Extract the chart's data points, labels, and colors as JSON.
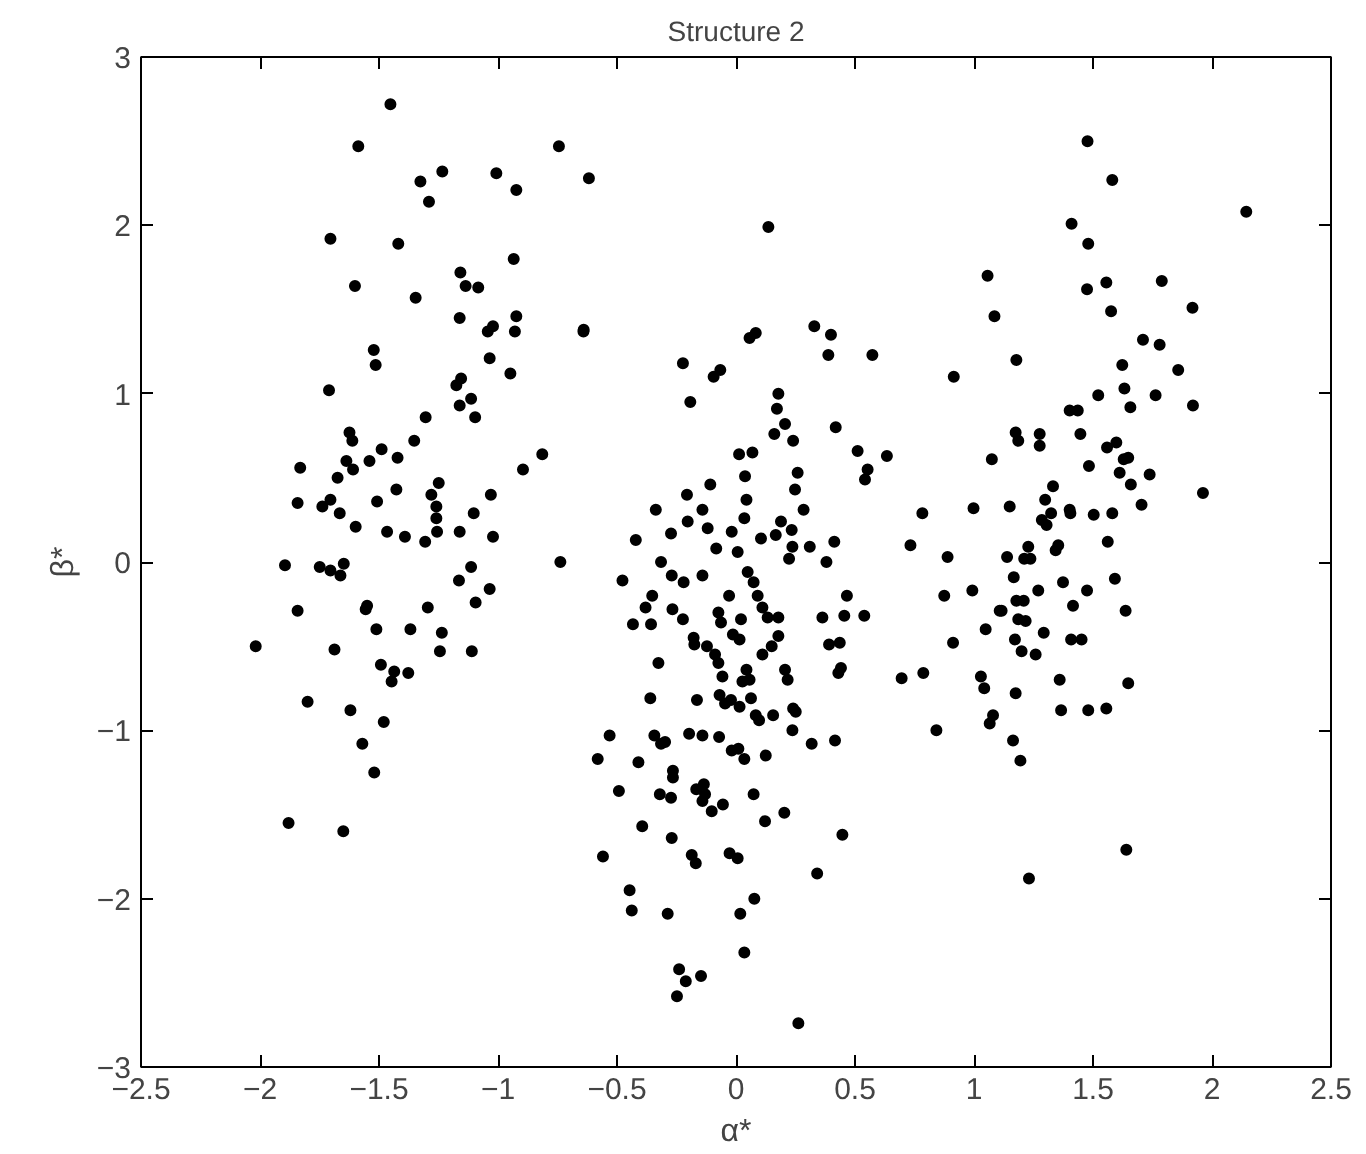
{
  "chart_data": {
    "type": "scatter",
    "title": "Structure 2",
    "xlabel": "α*",
    "ylabel": "β*",
    "xlim": [
      -2.5,
      2.5
    ],
    "ylim": [
      -3,
      3
    ],
    "xticks": [
      -2.5,
      -2,
      -1.5,
      -1,
      -0.5,
      0,
      0.5,
      1,
      1.5,
      2,
      2.5
    ],
    "yticks": [
      -3,
      -2,
      -1,
      0,
      1,
      2,
      3
    ],
    "grid": false,
    "marker": "circle",
    "series": [
      {
        "color": "#000000",
        "x": [
          -1.452,
          -1.587,
          -0.744,
          -1.326,
          -1.234,
          -1.29,
          -1.007,
          -0.923,
          -0.618,
          -1.704,
          -1.419,
          -1.601,
          -1.346,
          -1.158,
          -1.136,
          -1.083,
          -0.934,
          -1.161,
          -1.043,
          -1.021,
          -0.929,
          -0.923,
          -0.641,
          -1.522,
          -1.514,
          -1.035,
          -0.948,
          -1.71,
          -1.175,
          -1.155,
          -1.161,
          -1.113,
          -1.096,
          -1.304,
          -1.624,
          -1.612,
          -1.352,
          -1.489,
          -1.422,
          -1.54,
          -1.637,
          -1.831,
          -1.674,
          -1.609,
          -0.814,
          -0.895,
          -1.842,
          -1.704,
          -1.738,
          -1.665,
          -1.427,
          -1.508,
          -1.28,
          -1.249,
          -1.259,
          -1.259,
          -1.102,
          -1.03,
          -1.598,
          -1.466,
          -1.391,
          -1.306,
          -1.256,
          -1.161,
          -1.021,
          -1.895,
          -1.749,
          -1.704,
          -1.648,
          -1.662,
          -0.738,
          -1.113,
          -1.164,
          -1.035,
          -1.094,
          -1.842,
          -1.55,
          -1.556,
          -1.295,
          -1.511,
          -1.368,
          -1.236,
          -2.018,
          -1.687,
          -1.244,
          -1.11,
          -1.492,
          -1.436,
          -1.377,
          -1.447,
          -1.88,
          -1.65,
          -1.52,
          -1.57,
          -1.62,
          -1.8,
          -1.48,
          0.136,
          -0.64,
          0.057,
          0.083,
          0.329,
          0.399,
          0.388,
          0.573,
          -0.223,
          -0.094,
          -0.066,
          -0.192,
          0.178,
          0.172,
          0.206,
          0.161,
          0.24,
          0.419,
          0.915,
          1.057,
          1.086,
          0.511,
          0.634,
          0.553,
          0.542,
          0.013,
          0.069,
          1.075,
          -0.108,
          -0.206,
          -0.337,
          0.038,
          0.044,
          0.259,
          0.248,
          0.284,
          -0.421,
          -0.273,
          -0.203,
          -0.141,
          -0.119,
          -0.018,
          0.035,
          0.105,
          0.167,
          0.234,
          0.237,
          0.223,
          0.31,
          0.413,
          0.38,
          0.189,
          0.783,
          0.733,
          0.889,
          0.998,
          -0.315,
          -0.477,
          -0.27,
          -0.22,
          -0.141,
          -0.083,
          0.007,
          0.049,
          0.074,
          0.091,
          -0.029,
          -0.352,
          -0.38,
          -0.267,
          -0.223,
          -0.433,
          -0.357,
          -0.074,
          -0.063,
          0.021,
          0.111,
          0.133,
          0.178,
          0.178,
          0.15,
          0.111,
          -0.013,
          0.015,
          0.363,
          0.466,
          0.455,
          0.539,
          0.391,
          0.436,
          0.441,
          0.43,
          -0.178,
          -0.175,
          -0.122,
          -0.088,
          -0.074,
          -0.057,
          -0.326,
          0.044,
          0.027,
          0.057,
          0.206,
          0.217,
          0.696,
          0.787,
          1.029,
          1.043,
          1.08,
          1.066,
          0.842,
          -0.36,
          -0.164,
          -0.069,
          -0.046,
          -0.021,
          0.015,
          0.063,
          0.083,
          0.097,
          0.156,
          0.24,
          0.251,
          -0.197,
          -0.141,
          -0.071,
          -0.343,
          -0.315,
          -0.298,
          -0.531,
          -0.581,
          -0.41,
          -0.018,
          0.01,
          0.035,
          0.125,
          0.237,
          0.318,
          0.416,
          -0.265,
          -0.265,
          -0.32,
          -0.273,
          -0.492,
          -0.167,
          -0.135,
          -0.13,
          -0.141,
          -0.102,
          -0.055,
          0.074,
          0.122,
          0.203,
          -0.394,
          -0.27,
          -0.559,
          -0.186,
          -0.169,
          -0.027,
          0.007,
          0.447,
          0.341,
          -0.447,
          -0.438,
          -0.287,
          0.077,
          0.018,
          0.035,
          -0.239,
          -0.211,
          -0.248,
          -0.147,
          0.262,
          0.993,
          1.049,
          1.108,
          0.912,
          0.875,
          1.477,
          1.581,
          2.144,
          1.41,
          1.48,
          1.475,
          1.556,
          1.789,
          1.576,
          1.918,
          1.71,
          1.78,
          1.858,
          1.623,
          1.178,
          1.522,
          1.632,
          1.657,
          1.763,
          1.92,
          1.402,
          1.436,
          1.175,
          1.186,
          1.276,
          1.276,
          1.447,
          1.559,
          1.598,
          1.629,
          1.648,
          1.483,
          1.612,
          1.659,
          1.738,
          1.962,
          1.332,
          1.299,
          1.324,
          1.402,
          1.405,
          1.15,
          1.285,
          1.305,
          1.503,
          1.581,
          1.704,
          1.562,
          1.228,
          1.211,
          1.237,
          1.139,
          1.343,
          1.354,
          1.167,
          1.592,
          1.27,
          1.374,
          1.475,
          1.416,
          1.178,
          1.209,
          1.116,
          1.637,
          1.186,
          1.217,
          1.293,
          1.172,
          1.2,
          1.259,
          1.408,
          1.452,
          1.175,
          1.36,
          1.648,
          1.366,
          1.48,
          1.556,
          1.164,
          1.195,
          1.64,
          1.231
        ],
        "values": [
          2.72,
          2.47,
          2.47,
          2.26,
          2.32,
          2.14,
          2.31,
          2.21,
          2.28,
          1.92,
          1.89,
          1.64,
          1.57,
          1.72,
          1.64,
          1.63,
          1.8,
          1.45,
          1.37,
          1.4,
          1.37,
          1.46,
          1.37,
          1.26,
          1.17,
          1.21,
          1.12,
          1.02,
          1.05,
          1.09,
          0.93,
          0.97,
          0.86,
          0.86,
          0.77,
          0.72,
          0.72,
          0.67,
          0.62,
          0.6,
          0.6,
          0.56,
          0.5,
          0.55,
          0.64,
          0.55,
          0.35,
          0.37,
          0.33,
          0.29,
          0.43,
          0.36,
          0.4,
          0.47,
          0.33,
          0.26,
          0.29,
          0.4,
          0.21,
          0.18,
          0.15,
          0.12,
          0.18,
          0.18,
          0.15,
          -0.02,
          -0.03,
          -0.05,
          -0.01,
          -0.08,
          0.0,
          -0.03,
          -0.11,
          -0.16,
          -0.24,
          -0.29,
          -0.26,
          -0.28,
          -0.27,
          -0.4,
          -0.4,
          -0.42,
          -0.5,
          -0.52,
          -0.53,
          -0.53,
          -0.61,
          -0.65,
          -0.66,
          -0.71,
          -1.55,
          -1.6,
          -1.25,
          -1.08,
          -0.88,
          -0.83,
          -0.95,
          1.99,
          1.38,
          1.33,
          1.36,
          1.4,
          1.35,
          1.23,
          1.23,
          1.18,
          1.1,
          1.14,
          0.95,
          1.0,
          0.91,
          0.82,
          0.76,
          0.72,
          0.8,
          1.1,
          1.7,
          1.46,
          0.66,
          0.63,
          0.55,
          0.49,
          0.64,
          0.65,
          0.61,
          0.46,
          0.4,
          0.31,
          0.51,
          0.37,
          0.53,
          0.43,
          0.31,
          0.13,
          0.17,
          0.24,
          0.31,
          0.2,
          0.18,
          0.26,
          0.14,
          0.16,
          0.19,
          0.09,
          0.02,
          0.09,
          0.12,
          0.0,
          0.24,
          0.29,
          0.1,
          0.03,
          0.32,
          0.0,
          -0.11,
          -0.08,
          -0.12,
          -0.08,
          0.08,
          0.06,
          -0.06,
          -0.12,
          -0.2,
          -0.2,
          -0.2,
          -0.27,
          -0.28,
          -0.34,
          -0.37,
          -0.37,
          -0.3,
          -0.36,
          -0.34,
          -0.27,
          -0.33,
          -0.33,
          -0.44,
          -0.5,
          -0.55,
          -0.43,
          -0.46,
          -0.33,
          -0.2,
          -0.32,
          -0.32,
          -0.49,
          -0.48,
          -0.63,
          -0.66,
          -0.45,
          -0.49,
          -0.5,
          -0.55,
          -0.6,
          -0.68,
          -0.6,
          -0.64,
          -0.71,
          -0.7,
          -0.64,
          -0.7,
          -0.69,
          -0.66,
          -0.68,
          -0.75,
          -0.91,
          -0.96,
          -1.0,
          -0.81,
          -0.82,
          -0.79,
          -0.84,
          -0.82,
          -0.86,
          -0.81,
          -0.91,
          -0.94,
          -0.91,
          -0.87,
          -0.89,
          -1.02,
          -1.03,
          -1.04,
          -1.03,
          -1.08,
          -1.07,
          -1.03,
          -1.17,
          -1.19,
          -1.12,
          -1.11,
          -1.17,
          -1.15,
          -1.0,
          -1.08,
          -1.06,
          -1.24,
          -1.28,
          -1.38,
          -1.4,
          -1.36,
          -1.35,
          -1.32,
          -1.38,
          -1.42,
          -1.48,
          -1.44,
          -1.38,
          -1.54,
          -1.49,
          -1.57,
          -1.64,
          -1.75,
          -1.74,
          -1.79,
          -1.73,
          -1.76,
          -1.62,
          -1.85,
          -1.95,
          -2.07,
          -2.09,
          -2.0,
          -2.09,
          -2.32,
          -2.42,
          -2.49,
          -2.58,
          -2.46,
          -2.74,
          -0.17,
          -0.4,
          -0.29,
          -0.48,
          -0.2,
          2.5,
          2.27,
          2.08,
          2.01,
          1.89,
          1.62,
          1.66,
          1.67,
          1.49,
          1.51,
          1.32,
          1.29,
          1.14,
          1.17,
          1.2,
          0.99,
          1.03,
          0.92,
          0.99,
          0.93,
          0.9,
          0.9,
          0.77,
          0.72,
          0.76,
          0.69,
          0.76,
          0.68,
          0.71,
          0.61,
          0.62,
          0.57,
          0.53,
          0.46,
          0.52,
          0.41,
          0.45,
          0.37,
          0.29,
          0.31,
          0.29,
          0.33,
          0.25,
          0.22,
          0.28,
          0.29,
          0.34,
          0.12,
          0.09,
          0.02,
          0.02,
          0.03,
          0.07,
          0.1,
          -0.09,
          -0.1,
          -0.17,
          -0.12,
          -0.17,
          -0.26,
          -0.23,
          -0.23,
          -0.29,
          -0.29,
          -0.34,
          -0.35,
          -0.42,
          -0.46,
          -0.53,
          -0.55,
          -0.46,
          -0.46,
          -0.78,
          -0.7,
          -0.72,
          -0.88,
          -0.88,
          -0.87,
          -1.06,
          -1.18,
          -1.71,
          -1.88
        ]
      }
    ]
  }
}
